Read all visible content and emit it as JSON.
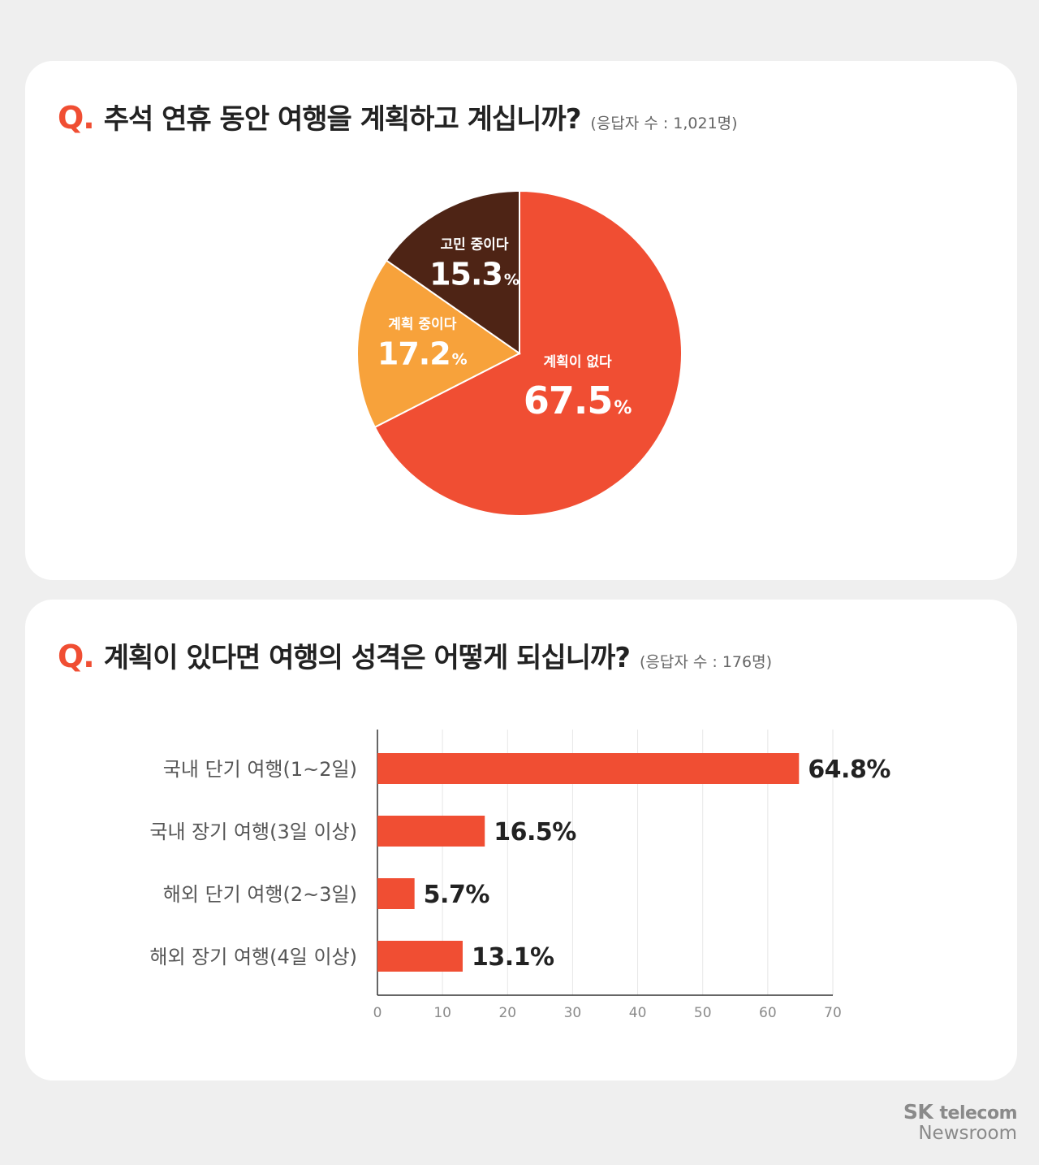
{
  "q1": {
    "marker": "Q.",
    "text": "추석 연휴 동안 여행을 계획하고 계십니까?",
    "note": "(응답자 수 : 1,021명)"
  },
  "q2": {
    "marker": "Q.",
    "text": "계획이 있다면 여행의 성격은 어떻게 되십니까?",
    "note": "(응답자 수 : 176명)"
  },
  "footer": {
    "brand": "SK",
    "brand_sub": "telecom",
    "newsroom": "Newsroom"
  },
  "chart_data": [
    {
      "type": "pie",
      "title": "",
      "slices": [
        {
          "label": "계획이 없다",
          "value": 67.5,
          "display": "67.5",
          "unit": "%",
          "color": "#f04e33"
        },
        {
          "label": "계획 중이다",
          "value": 17.2,
          "display": "17.2",
          "unit": "%",
          "color": "#f7a23b"
        },
        {
          "label": "고민 중이다",
          "value": 15.3,
          "display": "15.3",
          "unit": "%",
          "color": "#4e2415"
        }
      ]
    },
    {
      "type": "bar",
      "orientation": "horizontal",
      "title": "",
      "categories": [
        "국내 단기 여행(1~2일)",
        "국내 장기 여행(3일 이상)",
        "해외 단기 여행(2~3일)",
        "해외 장기 여행(4일 이상)"
      ],
      "values": [
        64.8,
        16.5,
        5.7,
        13.1
      ],
      "value_labels": [
        "64.8%",
        "16.5%",
        "5.7%",
        "13.1%"
      ],
      "xlim": [
        0,
        70
      ],
      "xticks": [
        "0",
        "10",
        "20",
        "30",
        "40",
        "50",
        "60",
        "70"
      ],
      "color": "#f04e33",
      "grid": true
    }
  ]
}
